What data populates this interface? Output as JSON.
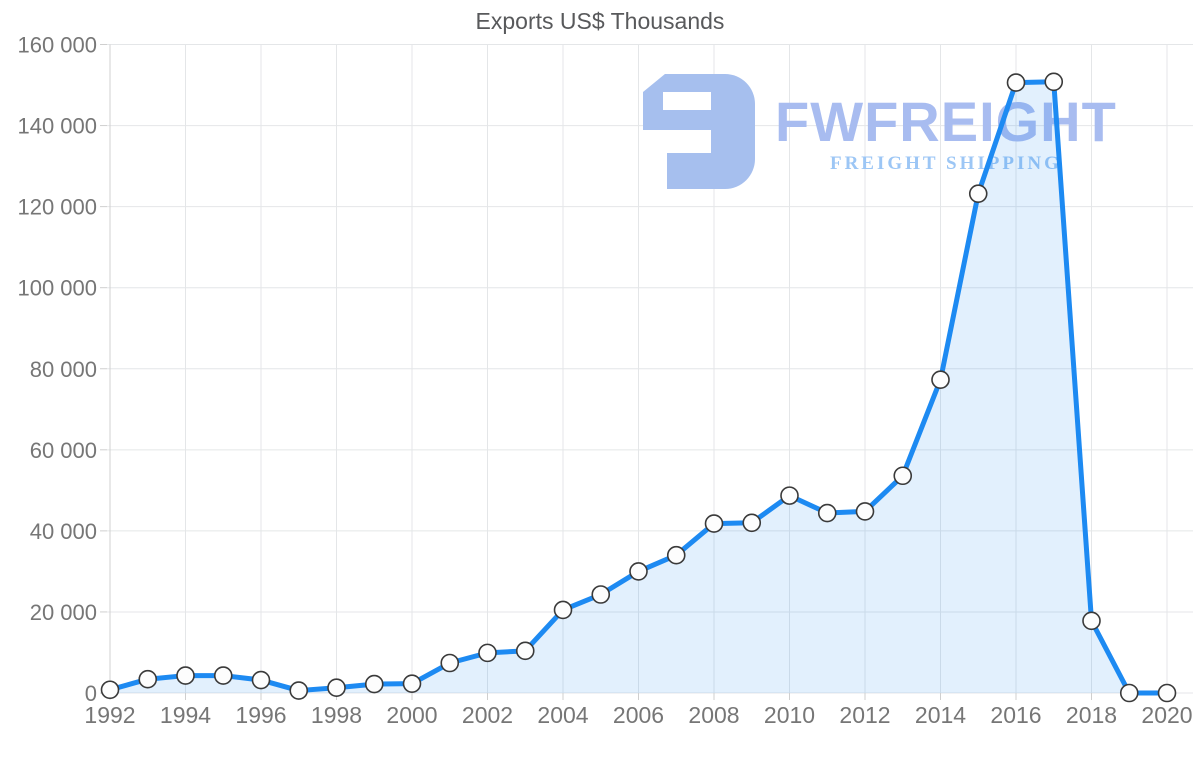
{
  "chart": {
    "title": "Exports US$ Thousands"
  },
  "watermark": {
    "brand": "FWFREIGHT",
    "tagline": "FREIGHT SHIPPING"
  },
  "chart_data": {
    "type": "area",
    "title": "Exports US$ Thousands",
    "xlabel": "",
    "ylabel": "",
    "x": [
      1992,
      1993,
      1994,
      1995,
      1996,
      1997,
      1998,
      1999,
      2000,
      2001,
      2002,
      2003,
      2004,
      2005,
      2006,
      2007,
      2008,
      2009,
      2010,
      2011,
      2012,
      2013,
      2014,
      2015,
      2016,
      2017,
      2018,
      2019,
      2020
    ],
    "values": [
      800,
      3400,
      4300,
      4300,
      3200,
      600,
      1300,
      2200,
      2300,
      7400,
      9900,
      10400,
      20500,
      24300,
      30000,
      34000,
      41800,
      42000,
      48700,
      44400,
      44800,
      53600,
      77300,
      123200,
      150600,
      150800,
      17800,
      0,
      0
    ],
    "ylim": [
      0,
      160000
    ],
    "ytick_step": 20000,
    "ytick_labels": [
      "0",
      "20 000",
      "40 000",
      "60 000",
      "80 000",
      "100 000",
      "120 000",
      "140 000",
      "160 000"
    ],
    "xtick_years": [
      1992,
      1994,
      1996,
      1998,
      2000,
      2002,
      2004,
      2006,
      2008,
      2010,
      2012,
      2014,
      2016,
      2018,
      2020
    ],
    "xtick_labels": [
      "1992",
      "1994",
      "1996",
      "1998",
      "2000",
      "2002",
      "2004",
      "2006",
      "2008",
      "2010",
      "2012",
      "2014",
      "2016",
      "2018",
      "2020"
    ],
    "grid": true,
    "legend": false,
    "markers": true,
    "colors": {
      "line": "#1d8af2",
      "area_fill": "rgba(29,138,242,0.13)",
      "marker_fill": "#fdfdfd",
      "marker_stroke": "#3a3a3a",
      "grid": "#e4e6e8",
      "axis": "#d0d0d0",
      "tick": "#cfcfcf",
      "label": "#767676",
      "title": "#58595b",
      "watermark_mark": "#a6bfee",
      "watermark_brand": "#a8bcf0",
      "watermark_tagline": "#9cc6f5"
    }
  }
}
